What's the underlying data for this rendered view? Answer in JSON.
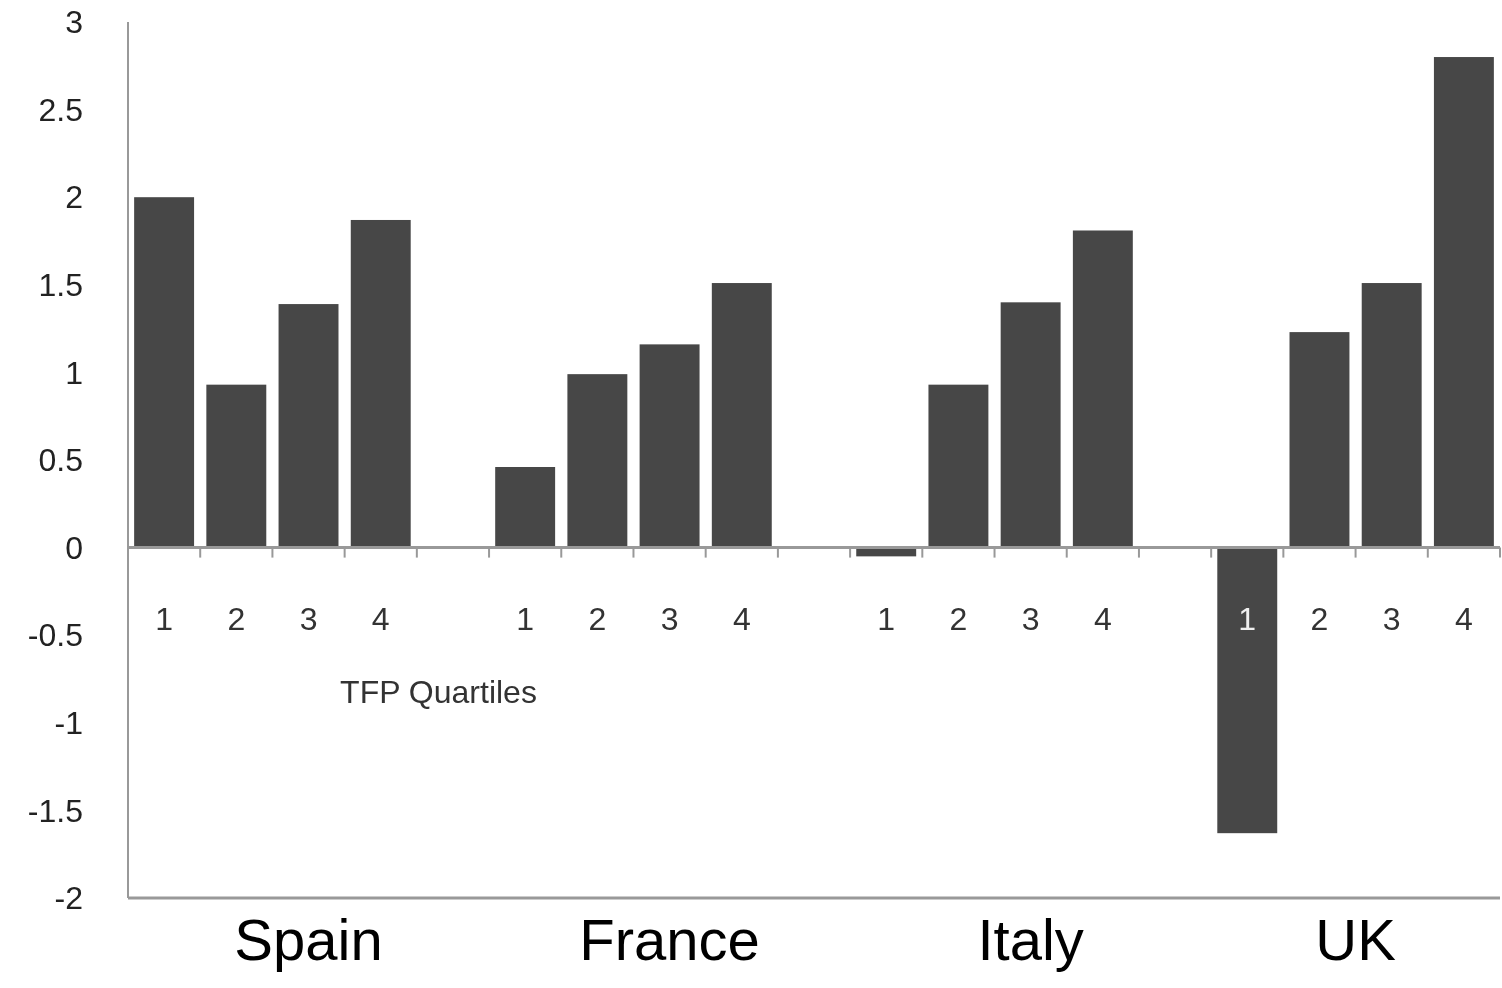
{
  "chart_data": {
    "type": "bar",
    "xlabel": "TFP Quartiles",
    "categories": [
      "1",
      "2",
      "3",
      "4",
      null,
      "1",
      "2",
      "3",
      "4",
      null,
      "1",
      "2",
      "3",
      "4",
      null,
      "1",
      "2",
      "3",
      "4"
    ],
    "values": [
      2.0,
      0.93,
      1.39,
      1.87,
      null,
      0.46,
      0.99,
      1.16,
      1.51,
      null,
      -0.05,
      0.93,
      1.4,
      1.81,
      null,
      -1.63,
      1.23,
      1.51,
      2.8
    ],
    "color": "#474747",
    "ylim": [
      -2,
      3
    ],
    "yticks": [
      -2,
      -1.5,
      -1,
      -0.5,
      0,
      0.5,
      1,
      1.5,
      2,
      2.5,
      3
    ],
    "grid": false,
    "annotations": [
      "Spain",
      "France",
      "Italy",
      "UK"
    ]
  }
}
